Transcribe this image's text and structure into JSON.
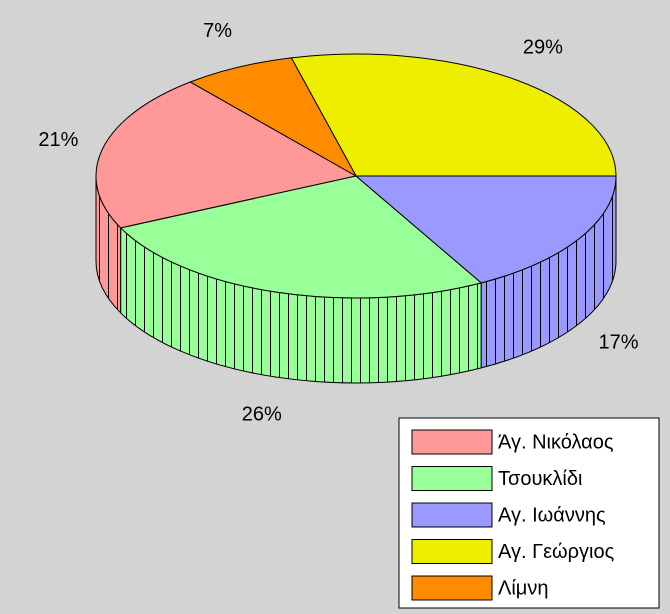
{
  "chart_data": {
    "type": "pie3d",
    "categories": [
      "Άγ. Νικόλαος",
      "Τσουκλίδι",
      "Αγ. Ιωάννης",
      "Αγ. Γεώργιος",
      "Λίμνη"
    ],
    "values": [
      21,
      26,
      17,
      29,
      7
    ],
    "value_labels": [
      "21%",
      "26%",
      "17%",
      "29%",
      "7%"
    ],
    "colors": [
      "#ff9999",
      "#99ff99",
      "#9999ff",
      "#eeee00",
      "#ff8c00"
    ],
    "legend": "bottom-right"
  }
}
